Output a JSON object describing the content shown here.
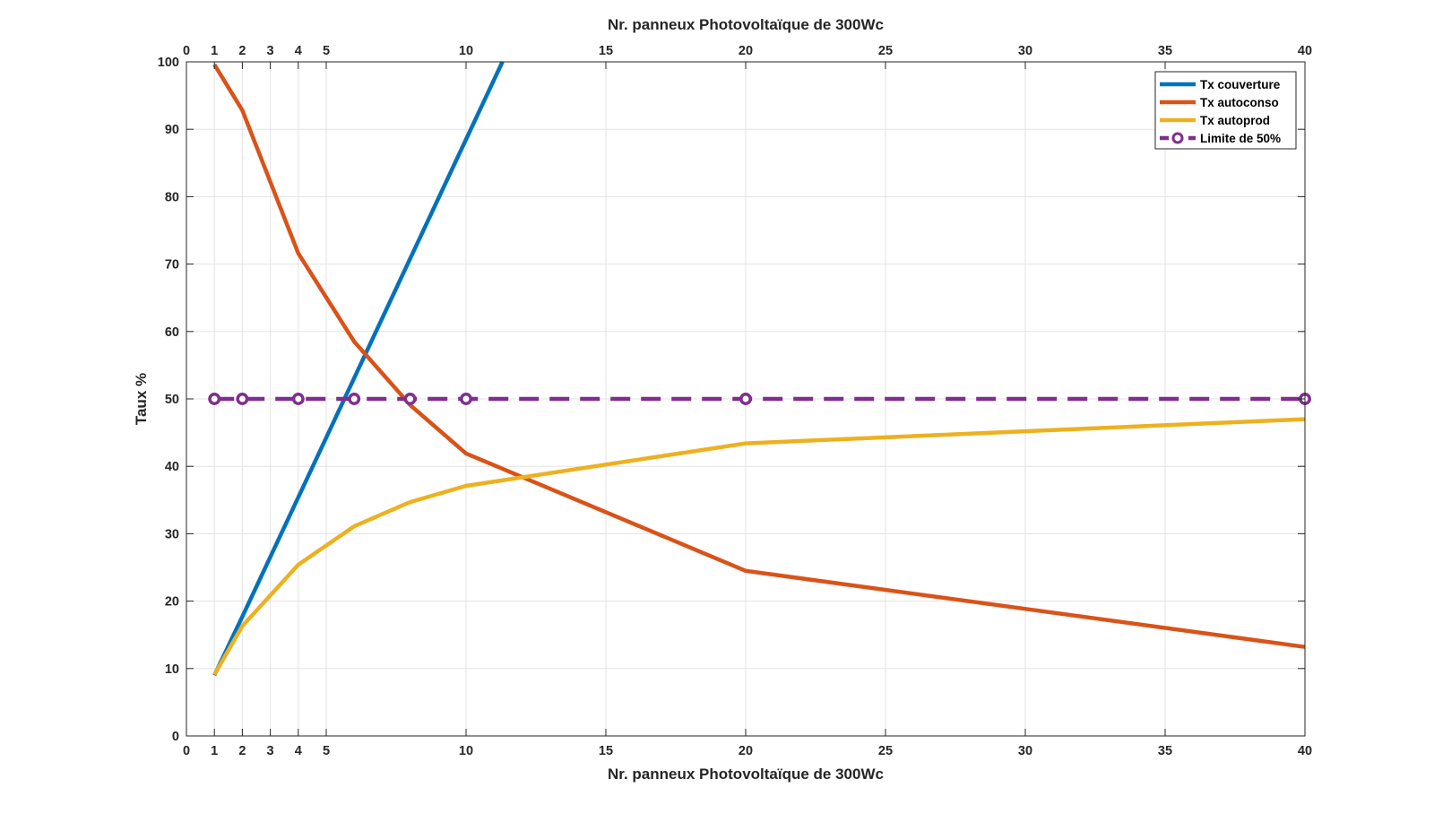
{
  "chart_data": {
    "type": "line",
    "xlabel_bottom": "Nr. panneux Photovoltaïque de 300Wc",
    "xlabel_top": "Nr. panneux Photovoltaïque de 300Wc",
    "ylabel": "Taux %",
    "xlim": [
      0,
      40
    ],
    "ylim": [
      0,
      100
    ],
    "xticks": [
      0,
      1,
      2,
      3,
      4,
      5,
      10,
      15,
      20,
      25,
      30,
      35,
      40
    ],
    "yticks": [
      0,
      10,
      20,
      30,
      40,
      50,
      60,
      70,
      80,
      90,
      100
    ],
    "grid": true,
    "legend_position": "top-right",
    "series": [
      {
        "name": "Tx couverture",
        "color": "#0072BD",
        "style": "solid",
        "x": [
          1,
          2,
          4,
          6,
          8,
          10,
          11.3
        ],
        "y": [
          9,
          17.7,
          35.4,
          53.1,
          70.8,
          88.5,
          100
        ]
      },
      {
        "name": "Tx autoconso",
        "color": "#D95319",
        "style": "solid",
        "x": [
          1,
          2,
          4,
          6,
          8,
          10,
          20,
          40
        ],
        "y": [
          99.6,
          92.8,
          71.6,
          58.5,
          49.1,
          41.9,
          24.5,
          13.2
        ]
      },
      {
        "name": "Tx autoprod",
        "color": "#EDB120",
        "style": "solid",
        "x": [
          1,
          2,
          4,
          6,
          8,
          10,
          20,
          40
        ],
        "y": [
          9.1,
          16.3,
          25.4,
          31.1,
          34.7,
          37.1,
          43.4,
          47
        ]
      },
      {
        "name": "Limite de 50%",
        "color": "#7E2F8E",
        "style": "dashed",
        "marker": "circle",
        "x": [
          1,
          2,
          4,
          6,
          8,
          10,
          20,
          40
        ],
        "y": [
          50,
          50,
          50,
          50,
          50,
          50,
          50,
          50
        ]
      }
    ]
  }
}
